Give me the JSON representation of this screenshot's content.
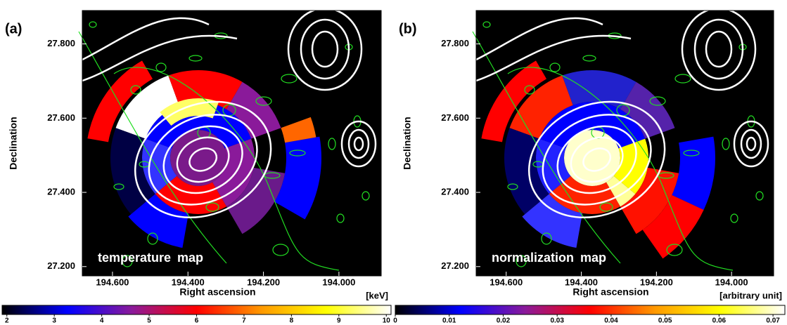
{
  "chart_data": [
    {
      "type": "map",
      "panel_label": "(a)",
      "annotation": "temperature map",
      "x_label": "Right ascension",
      "y_label": "Declination",
      "xlim": [
        194.68,
        193.888
      ],
      "ylim": [
        27.175,
        27.89
      ],
      "xticks": [
        {
          "value": 194.6,
          "label": "194.600"
        },
        {
          "value": 194.4,
          "label": "194.400"
        },
        {
          "value": 194.2,
          "label": "194.200"
        },
        {
          "value": 194.0,
          "label": "194.000"
        }
      ],
      "yticks": [
        {
          "value": 27.2,
          "label": "27.200"
        },
        {
          "value": 27.4,
          "label": "27.400"
        },
        {
          "value": 27.6,
          "label": "27.600"
        },
        {
          "value": 27.8,
          "label": "27.800"
        }
      ],
      "colorbar": {
        "label": "[keV]",
        "lim": [
          1.9,
          10.1
        ],
        "ticks": [
          2,
          3,
          4,
          5,
          6,
          7,
          8,
          9,
          10
        ],
        "colormap": [
          "#000000",
          "#0000ff",
          "#8a1a9a",
          "#ff0000",
          "#ff9900",
          "#ffff00",
          "#ffffff"
        ]
      }
    },
    {
      "type": "map",
      "panel_label": "(b)",
      "annotation": "normalization map",
      "x_label": "Right ascension",
      "y_label": "Declination",
      "xlim": [
        194.68,
        193.888
      ],
      "ylim": [
        27.175,
        27.89
      ],
      "xticks": [
        {
          "value": 194.6,
          "label": "194.600"
        },
        {
          "value": 194.4,
          "label": "194.400"
        },
        {
          "value": 194.2,
          "label": "194.200"
        },
        {
          "value": 194.0,
          "label": "194.000"
        }
      ],
      "yticks": [
        {
          "value": 27.2,
          "label": "27.200"
        },
        {
          "value": 27.4,
          "label": "27.400"
        },
        {
          "value": 27.6,
          "label": "27.600"
        },
        {
          "value": 27.8,
          "label": "27.800"
        }
      ],
      "colorbar": {
        "label": "[arbitrary unit]",
        "lim": [
          0,
          0.0722
        ],
        "ticks": [
          0,
          0.01,
          0.02,
          0.03,
          0.04,
          0.05,
          0.06,
          0.07
        ],
        "colormap": [
          "#000000",
          "#0000ff",
          "#8a1a9a",
          "#ff0000",
          "#ff9900",
          "#ffff00",
          "#ffffff"
        ]
      }
    }
  ]
}
